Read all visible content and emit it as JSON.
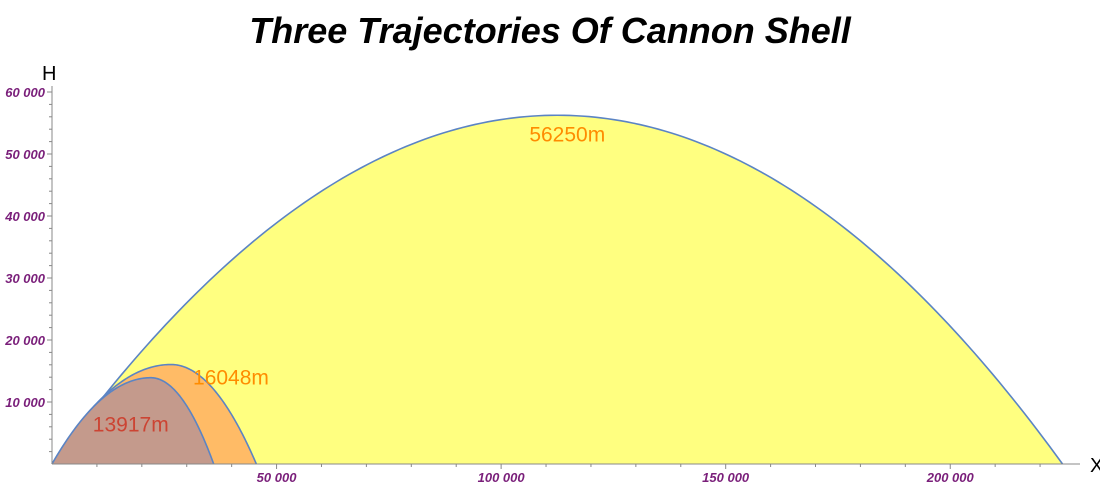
{
  "chart_data": {
    "type": "area",
    "title": "Three Trajectories Of Cannon Shell",
    "xlabel": "X",
    "ylabel": "H",
    "xlim": [
      0,
      228000
    ],
    "ylim": [
      0,
      60000
    ],
    "x_ticks": [
      50000,
      100000,
      150000,
      200000
    ],
    "x_tick_labels": [
      "50 000",
      "100 000",
      "150 000",
      "200 000"
    ],
    "y_ticks": [
      10000,
      20000,
      30000,
      40000,
      50000,
      60000
    ],
    "y_tick_labels": [
      "10 000",
      "20 000",
      "30 000",
      "40 000",
      "50 000",
      "60 000"
    ],
    "grid": false,
    "series": [
      {
        "range": 225000,
        "max_height": 56250,
        "apex_x": 112500,
        "fill": "#ffff80",
        "label": "56250m",
        "label_color": "#ff8c00"
      },
      {
        "range": 45500,
        "max_height": 16048,
        "apex_x": 26500,
        "fill": "#ffbb66",
        "label": "16048m",
        "label_color": "#ff8c00"
      },
      {
        "range": 36000,
        "max_height": 13917,
        "apex_x": 22000,
        "fill": "#c49a8c",
        "label": "13917m",
        "label_color": "#cc4433"
      }
    ],
    "line_color": "#5b84c4"
  }
}
